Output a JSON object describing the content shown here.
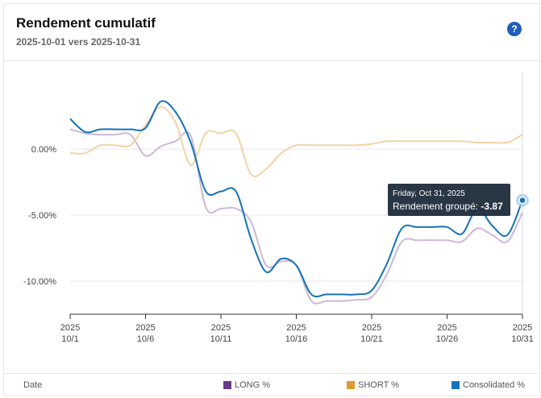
{
  "header": {
    "title": "Rendement cumulatif",
    "subtitle": "2025-10-01 vers 2025-10-31",
    "help_label": "?"
  },
  "tooltip": {
    "date": "Friday, Oct 31, 2025",
    "label": "Rendement groupé: ",
    "value": "-3.87"
  },
  "legend": {
    "date_label": "Date",
    "items": [
      {
        "label": "LONG %",
        "color": "#6b3a8c"
      },
      {
        "label": "SHORT %",
        "color": "#e09b2d"
      },
      {
        "label": "Consolidated %",
        "color": "#1572b8"
      }
    ]
  },
  "colors": {
    "long_line": "#cdb8d6",
    "short_line": "#f3d3a6",
    "consolidated_line": "#1572b8",
    "grid": "#e6e6e6",
    "tooltip_bg": "#1d2b3a"
  },
  "chart_data": {
    "type": "line",
    "title": "Rendement cumulatif",
    "xlabel": "Date",
    "ylabel": "",
    "xlim": [
      1,
      31
    ],
    "ylim": [
      -12.5,
      5.5
    ],
    "y_ticks": [
      0,
      -5,
      -10
    ],
    "y_tick_labels": [
      "0.00%",
      "-5.00%",
      "-10.00%"
    ],
    "x_ticks": [
      {
        "day": 1,
        "year": "2025",
        "label": "10/1"
      },
      {
        "day": 6,
        "year": "2025",
        "label": "10/6"
      },
      {
        "day": 11,
        "year": "2025",
        "label": "10/11"
      },
      {
        "day": 16,
        "year": "2025",
        "label": "10/16"
      },
      {
        "day": 21,
        "year": "2025",
        "label": "10/21"
      },
      {
        "day": 26,
        "year": "2025",
        "label": "10/26"
      },
      {
        "day": 31,
        "year": "2025",
        "label": "10/31"
      }
    ],
    "x": [
      1,
      2,
      3,
      4,
      5,
      6,
      7,
      8,
      9,
      10,
      11,
      12,
      13,
      14,
      15,
      16,
      17,
      18,
      19,
      20,
      21,
      22,
      23,
      24,
      25,
      26,
      27,
      28,
      29,
      30,
      31
    ],
    "series": [
      {
        "name": "LONG %",
        "values": [
          1.5,
          1.2,
          1.1,
          1.1,
          1.1,
          -0.5,
          0.2,
          0.6,
          1.0,
          -4.4,
          -4.5,
          -4.5,
          -5.5,
          -8.8,
          -8.5,
          -8.8,
          -11.5,
          -11.5,
          -11.5,
          -11.4,
          -11.2,
          -9.5,
          -7.0,
          -6.9,
          -6.9,
          -6.9,
          -7.0,
          -6.0,
          -6.5,
          -7.0,
          -4.8
        ]
      },
      {
        "name": "SHORT %",
        "values": [
          -0.3,
          -0.3,
          0.3,
          0.3,
          0.3,
          1.8,
          3.2,
          2.0,
          -1.2,
          1.2,
          1.2,
          1.2,
          -1.9,
          -1.5,
          -0.3,
          0.3,
          0.3,
          0.3,
          0.3,
          0.3,
          0.4,
          0.6,
          0.6,
          0.6,
          0.6,
          0.6,
          0.6,
          0.5,
          0.5,
          0.5,
          1.1
        ]
      },
      {
        "name": "Consolidated %",
        "values": [
          2.3,
          1.3,
          1.5,
          1.5,
          1.5,
          1.6,
          3.6,
          2.8,
          0.5,
          -3.2,
          -3.2,
          -3.2,
          -6.8,
          -9.3,
          -8.3,
          -8.8,
          -11.0,
          -11.0,
          -11.0,
          -11.0,
          -10.7,
          -8.7,
          -6.0,
          -5.9,
          -5.9,
          -5.9,
          -6.4,
          -4.5,
          -5.8,
          -6.5,
          -3.87
        ]
      }
    ]
  }
}
